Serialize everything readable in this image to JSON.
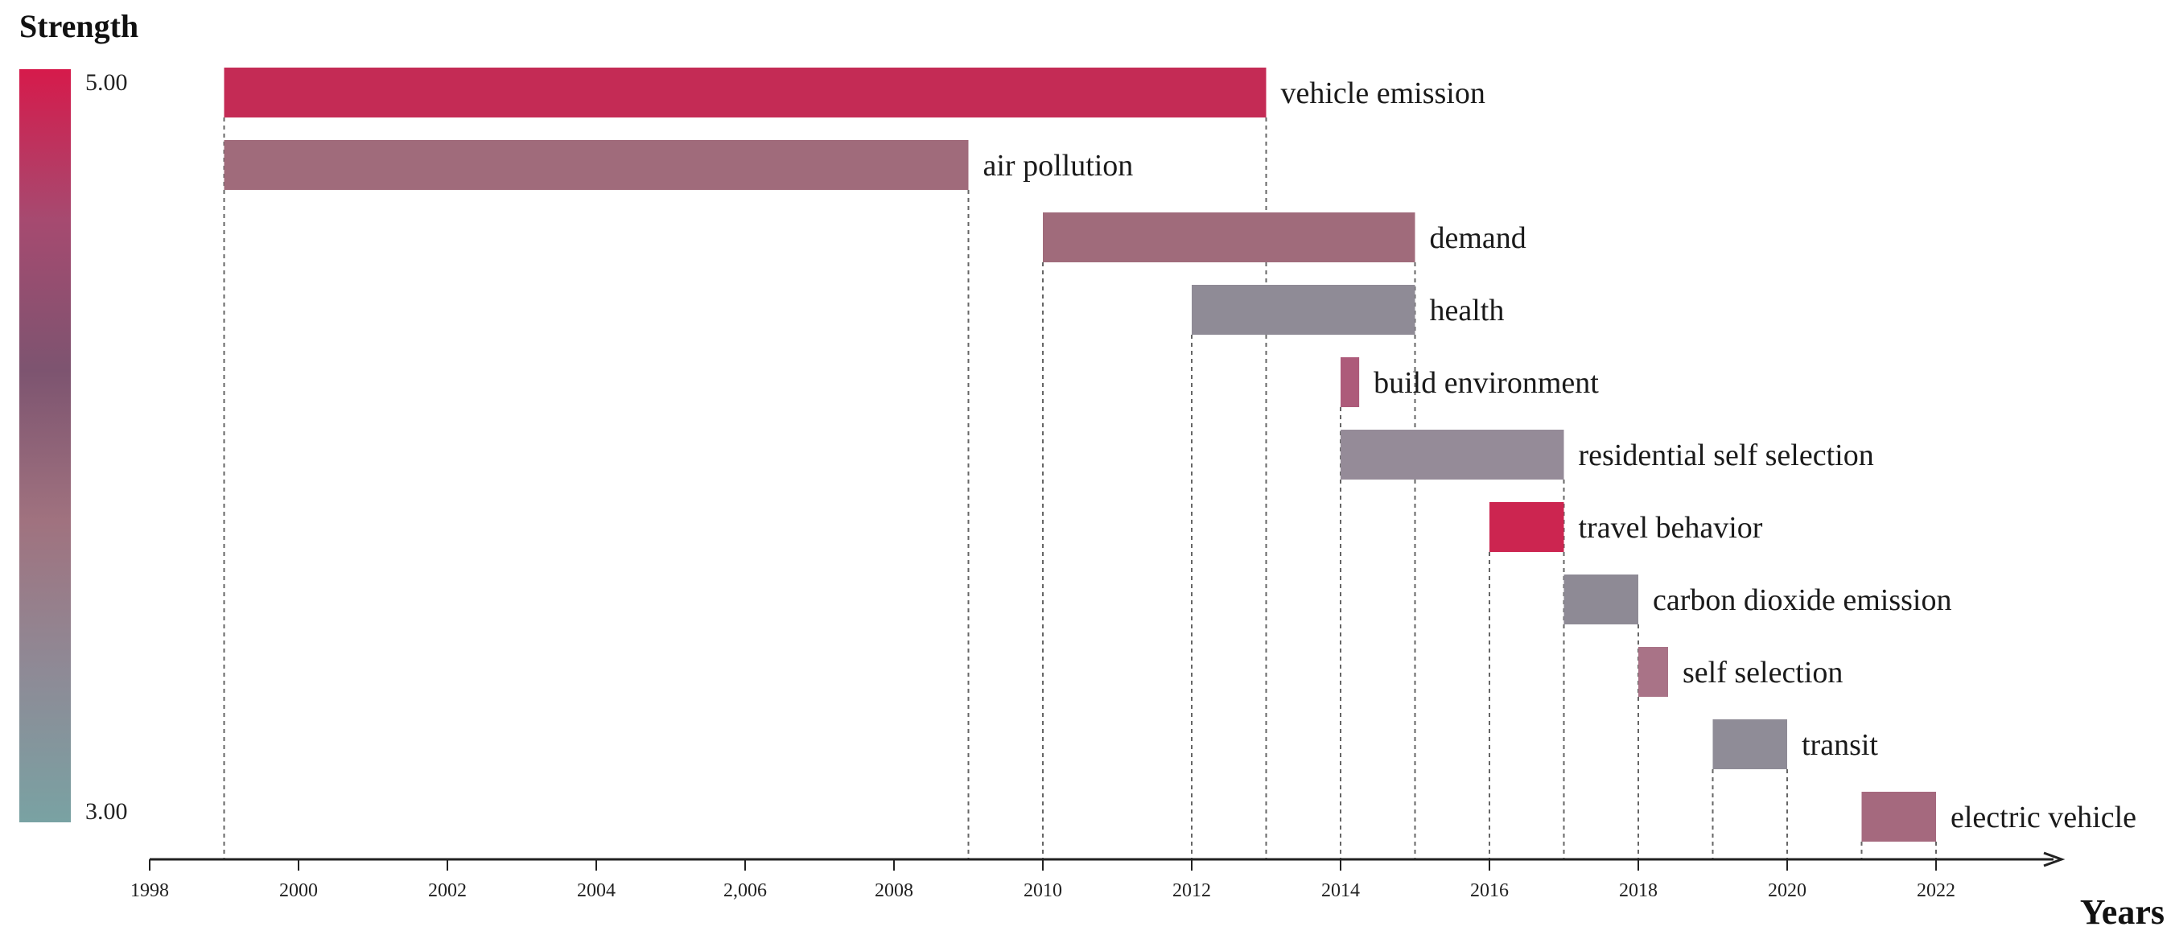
{
  "chart_data": {
    "type": "timeline-bar",
    "legend": {
      "title": "Strength",
      "max_label": "5.00",
      "min_label": "3.00",
      "min": 3.0,
      "max": 5.0,
      "colors": [
        "#d61a4b",
        "#a64a70",
        "#7d5470",
        "#a0727f",
        "#8e8a96",
        "#79a2a3"
      ]
    },
    "xaxis": {
      "title": "Years",
      "range": [
        1998,
        2023.8
      ],
      "ticks": [
        1998,
        2000,
        2002,
        2004,
        2006,
        2008,
        2010,
        2012,
        2014,
        2016,
        2018,
        2020,
        2022
      ],
      "tick_labels": [
        "1998",
        "2000",
        "2002",
        "2004",
        "2,006",
        "2008",
        "2010",
        "2012",
        "2014",
        "2016",
        "2018",
        "2020",
        "2022"
      ]
    },
    "bars": [
      {
        "label": "vehicle emission",
        "start": 1999,
        "end": 2013,
        "color": "#c42b55"
      },
      {
        "label": "air pollution",
        "start": 1999,
        "end": 2009,
        "color": "#a06b7b"
      },
      {
        "label": "demand",
        "start": 2010,
        "end": 2015,
        "color": "#a06b7b"
      },
      {
        "label": "health",
        "start": 2012,
        "end": 2015,
        "color": "#8f8b96"
      },
      {
        "label": "build environment",
        "start": 2014,
        "end": 2014.25,
        "color": "#ad5b7a"
      },
      {
        "label": "residential self selection",
        "start": 2014,
        "end": 2017,
        "color": "#958b98"
      },
      {
        "label": "travel behavior",
        "start": 2016,
        "end": 2017,
        "color": "#cc2550"
      },
      {
        "label": "carbon dioxide emission",
        "start": 2017,
        "end": 2018,
        "color": "#8e8a95"
      },
      {
        "label": "self selection",
        "start": 2018,
        "end": 2018.4,
        "color": "#a97387"
      },
      {
        "label": "transit",
        "start": 2019,
        "end": 2020,
        "color": "#8f8c97"
      },
      {
        "label": "electric vehicle",
        "start": 2021,
        "end": 2022,
        "color": "#a5697e"
      }
    ]
  }
}
